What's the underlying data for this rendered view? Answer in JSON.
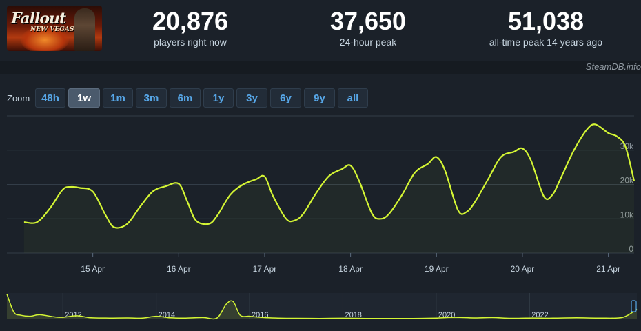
{
  "header": {
    "logo": {
      "title": "Fallout",
      "subtitle": "NEW VEGAS"
    },
    "stats": [
      {
        "value": "20,876",
        "label": "players right now"
      },
      {
        "value": "37,650",
        "label": "24-hour peak"
      },
      {
        "value": "51,038",
        "label": "all-time peak 14 years ago"
      }
    ]
  },
  "credit": "SteamDB.info",
  "zoom": {
    "label": "Zoom",
    "options": [
      "48h",
      "1w",
      "1m",
      "3m",
      "6m",
      "1y",
      "3y",
      "6y",
      "9y",
      "all"
    ],
    "active": "1w"
  },
  "colors": {
    "line": "#d4f534",
    "background": "#1b2129",
    "grid": "#333d48",
    "button_text": "#57a7e8"
  },
  "chart_data": [
    {
      "type": "line",
      "grid": true,
      "legend": "none",
      "x_tick_labels": [
        "15 Apr",
        "16 Apr",
        "17 Apr",
        "18 Apr",
        "19 Apr",
        "20 Apr",
        "21 Apr"
      ],
      "y_tick_labels": [
        "0",
        "10k",
        "20k",
        "30k"
      ],
      "ylim": [
        0,
        40000
      ],
      "series": [
        {
          "x": [
            14.2,
            14.35,
            14.5,
            14.65,
            14.75,
            14.85,
            15.0,
            15.15,
            15.25,
            15.4,
            15.55,
            15.7,
            15.85,
            16.0,
            16.1,
            16.2,
            16.35,
            16.45,
            16.6,
            16.75,
            16.9,
            17.0,
            17.1,
            17.25,
            17.35,
            17.45,
            17.6,
            17.75,
            17.9,
            18.0,
            18.1,
            18.25,
            18.35,
            18.45,
            18.6,
            18.75,
            18.9,
            19.0,
            19.1,
            19.25,
            19.35,
            19.45,
            19.6,
            19.75,
            19.9,
            20.0,
            20.1,
            20.25,
            20.35,
            20.45,
            20.6,
            20.75,
            20.85,
            21.0,
            21.1,
            21.2,
            21.3
          ],
          "y": [
            9000,
            9000,
            13000,
            18500,
            19300,
            19000,
            17900,
            11000,
            7500,
            8500,
            13500,
            18000,
            19500,
            20200,
            15000,
            9500,
            8500,
            11000,
            17000,
            20000,
            21500,
            22300,
            16500,
            10000,
            9500,
            11500,
            17500,
            22500,
            24500,
            25500,
            21000,
            11500,
            10000,
            11500,
            17000,
            23500,
            26000,
            28000,
            24000,
            12500,
            12000,
            15000,
            21500,
            28000,
            29500,
            30500,
            27000,
            16500,
            17000,
            22000,
            30000,
            36000,
            37500,
            35000,
            34000,
            31000,
            21000
          ]
        }
      ]
    },
    {
      "type": "area",
      "title": "",
      "grid": false,
      "x_tick_labels": [
        "2012",
        "2014",
        "2016",
        "2018",
        "2020",
        "2022"
      ],
      "series": [
        {
          "x": [
            2010.8,
            2010.95,
            2011.1,
            2011.3,
            2011.5,
            2011.8,
            2012.0,
            2012.3,
            2012.6,
            2013.0,
            2013.4,
            2013.7,
            2014.0,
            2014.3,
            2014.6,
            2015.0,
            2015.3,
            2015.5,
            2015.65,
            2015.8,
            2016.0,
            2016.3,
            2016.6,
            2017.0,
            2017.5,
            2018.0,
            2018.5,
            2019.0,
            2019.5,
            2020.0,
            2020.4,
            2020.8,
            2021.2,
            2021.6,
            2022.0,
            2022.5,
            2023.0,
            2023.5,
            2024.0,
            2024.3
          ],
          "y": [
            50000,
            14000,
            8000,
            6000,
            9000,
            5000,
            4000,
            7000,
            3000,
            2500,
            2800,
            2300,
            6000,
            3000,
            2500,
            3500,
            2500,
            30000,
            35000,
            8000,
            6000,
            3500,
            2500,
            2000,
            1800,
            2200,
            1800,
            1700,
            1800,
            2500,
            4000,
            2800,
            3500,
            2000,
            2500,
            2300,
            3000,
            2500,
            4000,
            20000
          ]
        }
      ]
    }
  ]
}
